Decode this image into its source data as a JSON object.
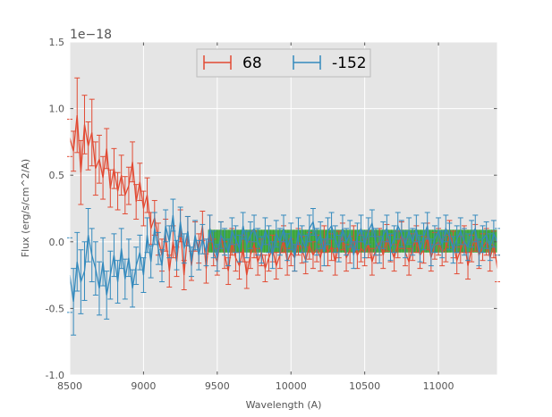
{
  "chart_data": {
    "type": "line",
    "title": "",
    "xlabel": "Wavelength (A)",
    "ylabel": "Flux (erg/s/cm^2/A)",
    "y_offset_label": "1e−18",
    "xlim": [
      8500,
      11400
    ],
    "ylim": [
      -1.0,
      1.5
    ],
    "xticks": [
      8500,
      9000,
      9500,
      10000,
      10500,
      11000
    ],
    "yticks": [
      -1.0,
      -0.5,
      0.0,
      0.5,
      1.0,
      1.5
    ],
    "grid": true,
    "background": "#e5e5e5",
    "legend_position": "top-center",
    "series": [
      {
        "name": "68",
        "color": "#e24a33",
        "x_start": 8500,
        "x_step": 25,
        "values": [
          0.78,
          0.68,
          0.95,
          0.52,
          0.88,
          0.72,
          0.82,
          0.55,
          0.62,
          0.48,
          0.7,
          0.4,
          0.55,
          0.38,
          0.5,
          0.35,
          0.42,
          0.6,
          0.3,
          0.45,
          0.25,
          0.35,
          0.1,
          0.18,
          0.02,
          -0.1,
          0.05,
          -0.22,
          0.0,
          -0.15,
          0.12,
          -0.25,
          0.08,
          -0.18,
          0.04,
          -0.05,
          0.12,
          -0.2,
          0.1,
          -0.08,
          -0.15,
          0.05,
          -0.1,
          -0.22,
          0.0,
          -0.12,
          -0.18,
          -0.05,
          -0.25,
          -0.1,
          -0.02,
          -0.15,
          -0.08,
          -0.2,
          -0.12,
          -0.05,
          -0.18,
          -0.1,
          0.02,
          -0.15,
          -0.08,
          -0.12,
          0.0,
          -0.06,
          -0.14,
          -0.03,
          -0.1,
          -0.05,
          -0.12,
          0.02,
          -0.08,
          -0.04,
          -0.15,
          -0.02,
          0.04,
          -0.12,
          -0.06,
          0.02,
          -0.1,
          -0.05,
          -0.08,
          -0.02,
          -0.15,
          -0.06,
          0.0,
          -0.1,
          0.03,
          -0.05,
          -0.12,
          -0.02,
          0.05,
          -0.08,
          -0.15,
          -0.04,
          0.02,
          -0.1,
          -0.06,
          0.04,
          -0.12,
          -0.03,
          0.0,
          -0.08,
          -0.05,
          0.06,
          -0.02,
          -0.14,
          -0.06,
          0.02,
          -0.18,
          -0.05,
          0.03,
          -0.1,
          -0.04,
          0.0,
          -0.12,
          -0.02,
          -0.2
        ],
        "errors": [
          0.14,
          0.15,
          0.28,
          0.24,
          0.22,
          0.18,
          0.25,
          0.2,
          0.18,
          0.16,
          0.15,
          0.14,
          0.15,
          0.14,
          0.15,
          0.14,
          0.14,
          0.15,
          0.13,
          0.14,
          0.13,
          0.13,
          0.12,
          0.13,
          0.12,
          0.12,
          0.12,
          0.12,
          0.12,
          0.11,
          0.12,
          0.11,
          0.11,
          0.11,
          0.11,
          0.11,
          0.11,
          0.11,
          0.1,
          0.1,
          0.1,
          0.1,
          0.1,
          0.1,
          0.1,
          0.1,
          0.1,
          0.1,
          0.1,
          0.1,
          0.1,
          0.1,
          0.1,
          0.1,
          0.1,
          0.1,
          0.1,
          0.1,
          0.1,
          0.1,
          0.1,
          0.1,
          0.1,
          0.1,
          0.1,
          0.1,
          0.1,
          0.1,
          0.1,
          0.1,
          0.1,
          0.1,
          0.1,
          0.1,
          0.1,
          0.1,
          0.1,
          0.1,
          0.1,
          0.1,
          0.1,
          0.1,
          0.1,
          0.1,
          0.1,
          0.1,
          0.1,
          0.1,
          0.1,
          0.1,
          0.1,
          0.1,
          0.1,
          0.1,
          0.1,
          0.1,
          0.1,
          0.1,
          0.1,
          0.1,
          0.1,
          0.1,
          0.1,
          0.1,
          0.1,
          0.1,
          0.1,
          0.1,
          0.1,
          0.1,
          0.1,
          0.1,
          0.1,
          0.1,
          0.1,
          0.1,
          0.1
        ]
      },
      {
        "name": "-152",
        "color": "#348abd",
        "x_start": 8500,
        "x_step": 25,
        "values": [
          -0.25,
          -0.45,
          -0.15,
          -0.3,
          -0.22,
          0.05,
          -0.1,
          -0.2,
          -0.35,
          -0.15,
          -0.4,
          -0.25,
          -0.1,
          -0.3,
          -0.05,
          -0.28,
          -0.12,
          -0.35,
          -0.18,
          -0.08,
          -0.25,
          0.05,
          -0.15,
          0.1,
          -0.05,
          -0.18,
          0.12,
          0.0,
          0.2,
          -0.1,
          0.15,
          -0.05,
          0.08,
          -0.15,
          0.05,
          -0.1,
          0.02,
          -0.08,
          0.1,
          -0.02,
          -0.12,
          0.05,
          0.0,
          -0.08,
          0.08,
          0.02,
          -0.05,
          0.12,
          -0.02,
          0.05,
          0.1,
          0.0,
          -0.06,
          0.08,
          0.02,
          -0.1,
          0.06,
          0.0,
          0.1,
          -0.04,
          0.04,
          -0.12,
          0.08,
          0.02,
          -0.05,
          0.1,
          0.15,
          0.0,
          0.05,
          -0.08,
          0.08,
          0.12,
          0.02,
          -0.05,
          0.1,
          0.0,
          0.06,
          -0.1,
          0.04,
          0.1,
          -0.02,
          0.08,
          0.14,
          0.0,
          -0.06,
          0.05,
          0.1,
          -0.04,
          0.02,
          0.12,
          0.06,
          -0.02,
          0.08,
          0.0,
          0.1,
          -0.05,
          0.04,
          0.12,
          -0.08,
          0.02,
          0.08,
          -0.02,
          0.1,
          0.04,
          -0.06,
          0.02,
          0.08,
          0.0,
          -0.04,
          0.06,
          0.1,
          -0.08,
          0.02,
          0.05,
          -0.04,
          0.06,
          0.0
        ],
        "errors": [
          0.28,
          0.25,
          0.22,
          0.24,
          0.22,
          0.2,
          0.2,
          0.2,
          0.2,
          0.18,
          0.18,
          0.18,
          0.16,
          0.16,
          0.15,
          0.15,
          0.14,
          0.14,
          0.14,
          0.13,
          0.13,
          0.13,
          0.12,
          0.12,
          0.12,
          0.12,
          0.12,
          0.12,
          0.12,
          0.11,
          0.11,
          0.11,
          0.11,
          0.11,
          0.11,
          0.11,
          0.11,
          0.1,
          0.1,
          0.1,
          0.1,
          0.1,
          0.1,
          0.1,
          0.1,
          0.1,
          0.1,
          0.1,
          0.1,
          0.1,
          0.1,
          0.1,
          0.1,
          0.1,
          0.1,
          0.1,
          0.1,
          0.1,
          0.1,
          0.1,
          0.1,
          0.1,
          0.1,
          0.1,
          0.1,
          0.1,
          0.1,
          0.1,
          0.1,
          0.1,
          0.1,
          0.1,
          0.1,
          0.1,
          0.1,
          0.1,
          0.1,
          0.1,
          0.1,
          0.1,
          0.1,
          0.1,
          0.1,
          0.1,
          0.1,
          0.1,
          0.1,
          0.1,
          0.1,
          0.1,
          0.1,
          0.1,
          0.1,
          0.1,
          0.1,
          0.1,
          0.1,
          0.1,
          0.1,
          0.1,
          0.1,
          0.1,
          0.1,
          0.1,
          0.1,
          0.1,
          0.1,
          0.1,
          0.1,
          0.1,
          0.1,
          0.1,
          0.1,
          0.1,
          0.1,
          0.1,
          0.1
        ]
      }
    ],
    "band": {
      "color": "#2ca02c",
      "x_range": [
        9450,
        11400
      ],
      "y_range": [
        -0.04,
        0.05
      ],
      "step": 20
    }
  }
}
